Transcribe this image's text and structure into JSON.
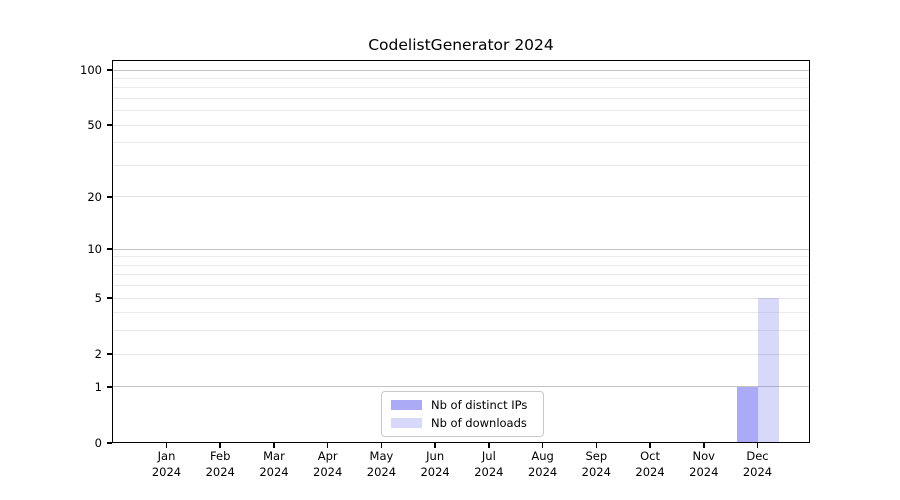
{
  "figure": {
    "title": "CodelistGenerator 2024"
  },
  "legend": {
    "items": [
      {
        "label": "Nb of distinct IPs",
        "color": "rgba(100,100,240,0.55)"
      },
      {
        "label": "Nb of downloads",
        "color": "rgba(100,100,240,0.25)"
      }
    ]
  },
  "chart_data": {
    "type": "bar",
    "title": "CodelistGenerator 2024",
    "categories": [
      "Jan 2024",
      "Feb 2024",
      "Mar 2024",
      "Apr 2024",
      "May 2024",
      "Jun 2024",
      "Jul 2024",
      "Aug 2024",
      "Sep 2024",
      "Oct 2024",
      "Nov 2024",
      "Dec 2024"
    ],
    "series": [
      {
        "name": "Nb of distinct IPs",
        "color": "rgba(100,100,240,0.55)",
        "values": [
          0,
          0,
          0,
          0,
          0,
          0,
          0,
          0,
          0,
          0,
          0,
          1
        ]
      },
      {
        "name": "Nb of downloads",
        "color": "rgba(100,100,240,0.25)",
        "values": [
          0,
          0,
          0,
          0,
          0,
          0,
          0,
          0,
          0,
          0,
          0,
          5
        ]
      }
    ],
    "xlabel": "",
    "ylabel": "",
    "yscale": "log1p",
    "ylim": [
      0,
      113
    ],
    "yticks": [
      0,
      1,
      2,
      5,
      10,
      20,
      50,
      100
    ],
    "minor_gridlines": [
      3,
      4,
      6,
      7,
      8,
      9,
      30,
      40,
      60,
      70,
      80,
      90
    ],
    "emphasized_gridlines": [
      1,
      10,
      100
    ],
    "grid": true,
    "legend_position": "bottom-center",
    "bar_layout": "grouped"
  },
  "colors": {
    "axis": "#000000",
    "grid_minor": "#ebebeb",
    "grid_major": "#e4e4e4",
    "grid_emphasized": "#c3c3c3",
    "text": "#000000",
    "legend_border": "#c9c9c9",
    "background": "#ffffff"
  }
}
